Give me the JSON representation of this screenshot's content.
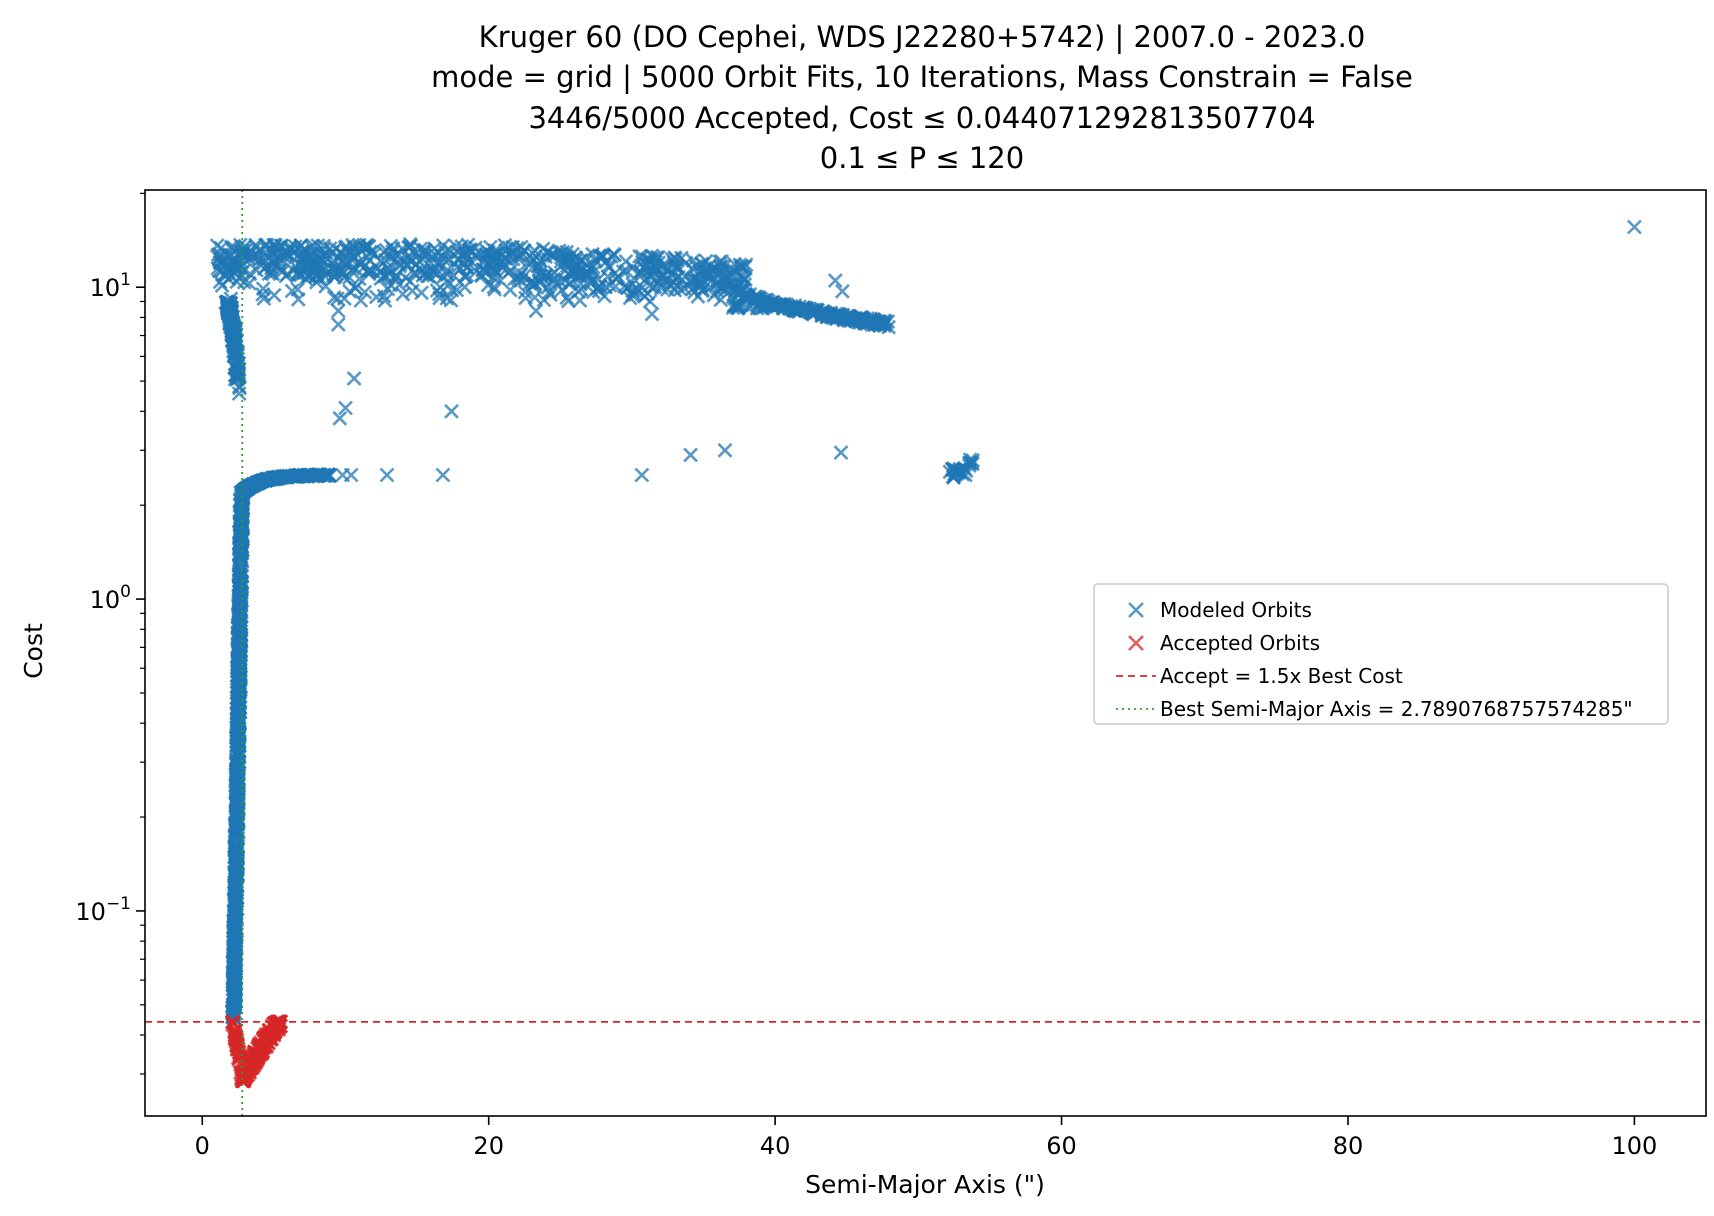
{
  "colors": {
    "modeled": "#1f77b4",
    "accepted": "#d62728",
    "accept_line": "#d62728",
    "best_line": "#2ca02c",
    "axes": "#000000",
    "background": "#ffffff"
  },
  "chart_data": {
    "type": "scatter",
    "title_lines": [
      "Kruger 60 (DO Cephei, WDS J22280+5742) | 2007.0 - 2023.0",
      "mode = grid | 5000 Orbit Fits, 10 Iterations, Mass Constrain = False",
      "3446/5000 Accepted, Cost ≤ 0.044071292813507704",
      "0.1 ≤ P ≤ 120"
    ],
    "xlabel": "Semi-Major Axis (\")",
    "ylabel": "Cost",
    "xlim": [
      -4,
      105
    ],
    "ylim": [
      0.022,
      20.5
    ],
    "yscale": "log",
    "xticks": [
      {
        "value": 0,
        "label": "0"
      },
      {
        "value": 20,
        "label": "20"
      },
      {
        "value": 40,
        "label": "40"
      },
      {
        "value": 60,
        "label": "60"
      },
      {
        "value": 80,
        "label": "80"
      },
      {
        "value": 100,
        "label": "100"
      }
    ],
    "yticks": [
      {
        "value": 0.1,
        "base": "10",
        "exp": "−1"
      },
      {
        "value": 1,
        "base": "10",
        "exp": "0"
      },
      {
        "value": 10,
        "base": "10",
        "exp": "1"
      }
    ],
    "grid": false,
    "marker": "x",
    "legend_position": "center-right",
    "legend": [
      {
        "label": "Modeled Orbits",
        "kind": "marker",
        "color": "#1f77b4"
      },
      {
        "label": "Accepted Orbits",
        "kind": "marker",
        "color": "#d62728"
      },
      {
        "label": "Accept = 1.5x Best Cost",
        "kind": "dashed",
        "color": "#d62728"
      },
      {
        "label": "Best Semi-Major Axis = 2.7890768757574285\"",
        "kind": "dotted",
        "color": "#2ca02c"
      }
    ],
    "accept_threshold": 0.044071292813507704,
    "best_semi_major_axis": 2.7890768757574285,
    "series": [
      {
        "name": "Modeled Orbits",
        "color": "#1f77b4",
        "segments": [
          {
            "desc": "vertical column of converged fits",
            "x_range": [
              2.1,
              2.9
            ],
            "cost_range": [
              0.045,
              2.2
            ],
            "count": 900
          },
          {
            "desc": "plateau rising to ~2.5",
            "x_range": [
              2.8,
              9.0
            ],
            "cost_range": [
              2.2,
              2.5
            ],
            "count": 220
          },
          {
            "desc": "high-cost branch near left",
            "x_range": [
              1.7,
              2.6
            ],
            "cost_range": [
              4.4,
              9.0
            ],
            "count": 160
          },
          {
            "desc": "cloud at high cost",
            "x_range": [
              1.0,
              38.0
            ],
            "cost_range": [
              9.0,
              14.0
            ],
            "count": 700
          },
          {
            "desc": "decaying arc",
            "x_range": [
              37.0,
              48.0
            ],
            "cost_range": [
              7.5,
              10.2
            ],
            "count": 240
          },
          {
            "desc": "cluster near 53",
            "x_range": [
              52.2,
              53.8
            ],
            "cost_range": [
              2.45,
              2.8
            ],
            "count": 30
          }
        ],
        "points": [
          {
            "x": 9.8,
            "y": 2.5
          },
          {
            "x": 10.4,
            "y": 2.5
          },
          {
            "x": 12.9,
            "y": 2.5
          },
          {
            "x": 16.8,
            "y": 2.5
          },
          {
            "x": 30.7,
            "y": 2.5
          },
          {
            "x": 34.1,
            "y": 2.9
          },
          {
            "x": 36.5,
            "y": 3.0
          },
          {
            "x": 44.6,
            "y": 2.95
          },
          {
            "x": 9.6,
            "y": 3.8
          },
          {
            "x": 10.0,
            "y": 4.1
          },
          {
            "x": 10.6,
            "y": 5.1
          },
          {
            "x": 17.4,
            "y": 4.0
          },
          {
            "x": 9.5,
            "y": 7.6
          },
          {
            "x": 9.5,
            "y": 8.4
          },
          {
            "x": 14.0,
            "y": 9.5
          },
          {
            "x": 23.3,
            "y": 8.4
          },
          {
            "x": 31.4,
            "y": 8.2
          },
          {
            "x": 44.2,
            "y": 10.5
          },
          {
            "x": 44.7,
            "y": 9.7
          },
          {
            "x": 100.0,
            "y": 15.6
          }
        ]
      },
      {
        "name": "Accepted Orbits",
        "color": "#d62728",
        "segments": [
          {
            "desc": "V-shaped accepted region",
            "x_range": [
              2.1,
              5.5
            ],
            "cost_range": [
              0.0285,
              0.0441
            ],
            "count": 260
          }
        ]
      }
    ]
  }
}
